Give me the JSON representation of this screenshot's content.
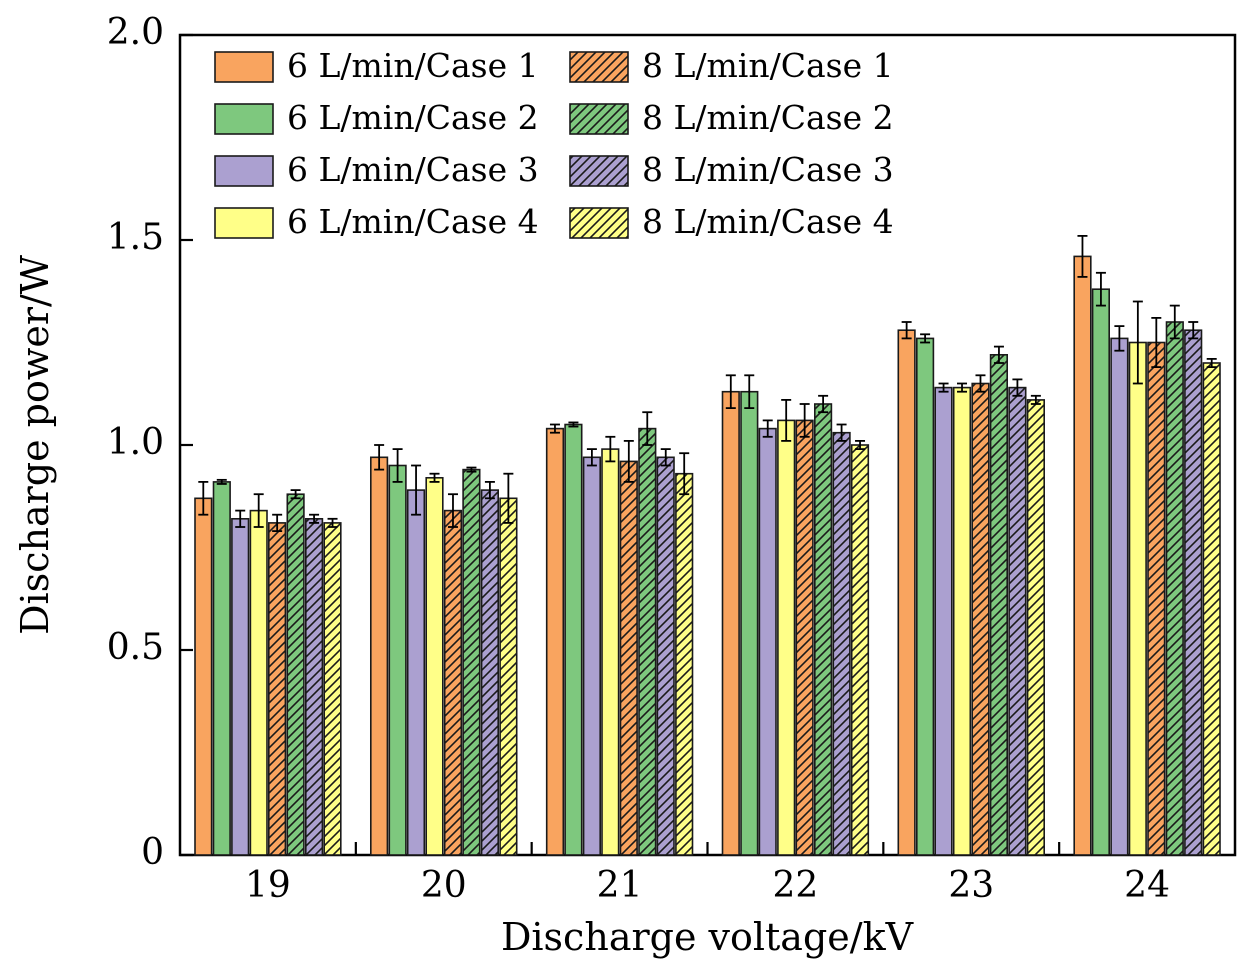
{
  "chart_data": {
    "type": "bar",
    "title": "",
    "xlabel": "Discharge voltage/kV",
    "ylabel": "Discharge power/W",
    "categories": [
      "19",
      "20",
      "21",
      "22",
      "23",
      "24"
    ],
    "ylim": [
      0,
      2.0
    ],
    "ytick_labels": [
      "0",
      "0.5",
      "1.0",
      "1.5",
      "2.0"
    ],
    "ytick_values": [
      0,
      0.5,
      1.0,
      1.5,
      2.0
    ],
    "grid": false,
    "legend_position": "top-left-inside",
    "legend_columns": 2,
    "bar_outline_color": "#1a1a1a",
    "series": [
      {
        "name": "6 L/min/Case 1",
        "color": "#F9A45F",
        "hatch": false,
        "values": [
          0.87,
          0.97,
          1.04,
          1.13,
          1.28,
          1.46
        ],
        "errors": [
          0.04,
          0.03,
          0.01,
          0.04,
          0.02,
          0.05
        ]
      },
      {
        "name": "6 L/min/Case 2",
        "color": "#7EC87E",
        "hatch": false,
        "values": [
          0.91,
          0.95,
          1.05,
          1.13,
          1.26,
          1.38
        ],
        "errors": [
          0.005,
          0.04,
          0.005,
          0.04,
          0.01,
          0.04
        ]
      },
      {
        "name": "6 L/min/Case 3",
        "color": "#ABA0D0",
        "hatch": false,
        "values": [
          0.82,
          0.89,
          0.97,
          1.04,
          1.14,
          1.26
        ],
        "errors": [
          0.02,
          0.06,
          0.02,
          0.02,
          0.01,
          0.03
        ]
      },
      {
        "name": "6 L/min/Case 4",
        "color": "#FFFF88",
        "hatch": false,
        "values": [
          0.84,
          0.92,
          0.99,
          1.06,
          1.14,
          1.25
        ],
        "errors": [
          0.04,
          0.01,
          0.03,
          0.05,
          0.01,
          0.1
        ]
      },
      {
        "name": "8 L/min/Case 1",
        "color": "#F9A45F",
        "hatch": true,
        "values": [
          0.81,
          0.84,
          0.96,
          1.06,
          1.15,
          1.25
        ],
        "errors": [
          0.02,
          0.04,
          0.05,
          0.04,
          0.02,
          0.06
        ]
      },
      {
        "name": "8 L/min/Case 2",
        "color": "#7EC87E",
        "hatch": true,
        "values": [
          0.88,
          0.94,
          1.04,
          1.1,
          1.22,
          1.3
        ],
        "errors": [
          0.01,
          0.005,
          0.04,
          0.02,
          0.02,
          0.04
        ]
      },
      {
        "name": "8 L/min/Case 3",
        "color": "#ABA0D0",
        "hatch": true,
        "values": [
          0.82,
          0.89,
          0.97,
          1.03,
          1.14,
          1.28
        ],
        "errors": [
          0.01,
          0.02,
          0.02,
          0.02,
          0.02,
          0.02
        ]
      },
      {
        "name": "8 L/min/Case 4",
        "color": "#FFFF88",
        "hatch": true,
        "values": [
          0.81,
          0.87,
          0.93,
          1.0,
          1.11,
          1.2
        ],
        "errors": [
          0.01,
          0.06,
          0.05,
          0.01,
          0.01,
          0.01
        ]
      }
    ]
  }
}
